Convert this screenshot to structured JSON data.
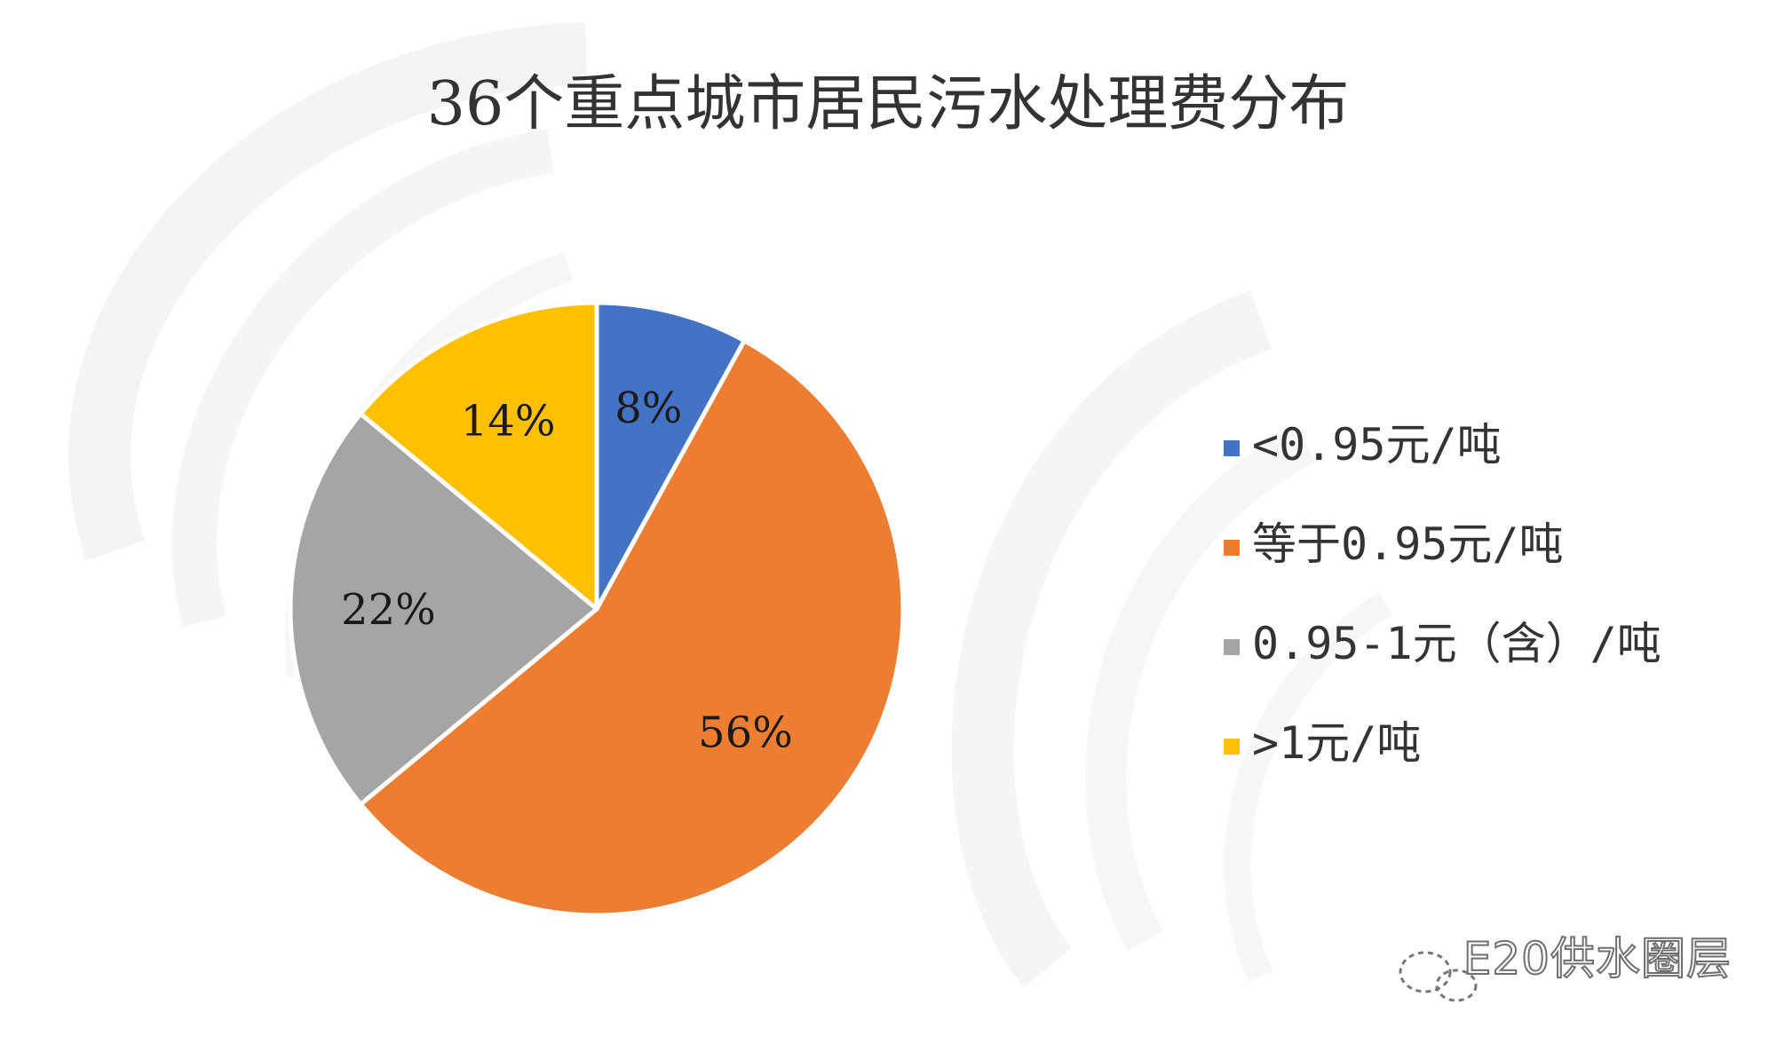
{
  "chart_data": {
    "type": "pie",
    "title": "36个重点城市居民污水处理费分布",
    "categories": [
      "<0.95元/吨",
      "等于0.95元/吨",
      "0.95-1元（含）/吨",
      ">1元/吨"
    ],
    "values": [
      8,
      56,
      22,
      14
    ],
    "labels": [
      "8%",
      "56%",
      "22%",
      "14%"
    ],
    "colors": [
      "#4472c4",
      "#ed7d31",
      "#a5a5a5",
      "#ffc000"
    ],
    "start_angle_deg": 0,
    "direction": "clockwise",
    "legend_position": "right"
  },
  "watermark": {
    "text": "E20供水圈层"
  }
}
